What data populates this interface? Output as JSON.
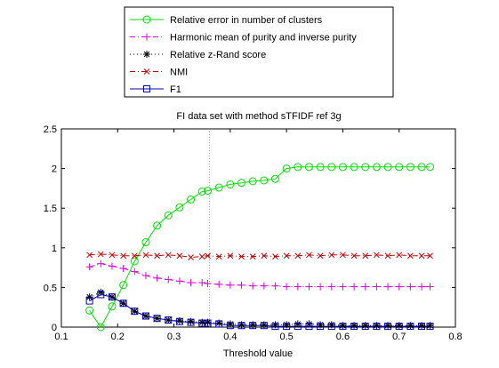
{
  "chart_data": {
    "type": "line",
    "title": "FI data set with method sTFIDF ref 3g",
    "xlabel": "Threshold value",
    "ylabel": "",
    "xlim": [
      0.1,
      0.8
    ],
    "ylim": [
      0,
      2.5
    ],
    "xticks": [
      "0.1",
      "0.2",
      "0.3",
      "0.4",
      "0.5",
      "0.6",
      "0.7",
      "0.8"
    ],
    "yticks": [
      "0",
      "0.5",
      "1",
      "1.5",
      "2",
      "2.5"
    ],
    "grid": false,
    "legend_position": "top-center-outside",
    "vertical_reference_line": {
      "x": 0.363,
      "color": "#a0a0a0"
    },
    "x": [
      0.15,
      0.17,
      0.19,
      0.21,
      0.23,
      0.25,
      0.27,
      0.29,
      0.31,
      0.33,
      0.35,
      0.36,
      0.38,
      0.4,
      0.42,
      0.44,
      0.46,
      0.48,
      0.5,
      0.52,
      0.54,
      0.56,
      0.58,
      0.6,
      0.62,
      0.64,
      0.66,
      0.68,
      0.7,
      0.72,
      0.74,
      0.755
    ],
    "series": [
      {
        "name": "Relative error in number of clusters",
        "color": "#00e000",
        "marker": "circle",
        "line_style": "solid",
        "values": [
          0.21,
          0.0,
          0.26,
          0.53,
          0.83,
          1.07,
          1.28,
          1.41,
          1.51,
          1.61,
          1.71,
          1.72,
          1.76,
          1.8,
          1.82,
          1.84,
          1.85,
          1.87,
          2.0,
          2.02,
          2.02,
          2.02,
          2.02,
          2.02,
          2.02,
          2.02,
          2.02,
          2.02,
          2.02,
          2.02,
          2.02,
          2.02
        ]
      },
      {
        "name": "Harmonic mean of purity and inverse purity",
        "color": "#e000e0",
        "marker": "plus",
        "line_style": "dashdot",
        "values": [
          0.76,
          0.8,
          0.77,
          0.74,
          0.7,
          0.65,
          0.62,
          0.6,
          0.58,
          0.56,
          0.56,
          0.55,
          0.54,
          0.53,
          0.53,
          0.52,
          0.52,
          0.52,
          0.51,
          0.51,
          0.51,
          0.51,
          0.51,
          0.51,
          0.51,
          0.51,
          0.51,
          0.51,
          0.51,
          0.51,
          0.51,
          0.51
        ]
      },
      {
        "name": "Relative z-Rand score",
        "color": "#000000",
        "marker": "star",
        "line_style": "dotted",
        "values": [
          0.38,
          0.44,
          0.38,
          0.3,
          0.2,
          0.14,
          0.11,
          0.09,
          0.08,
          0.07,
          0.06,
          0.06,
          0.05,
          0.04,
          0.03,
          0.03,
          0.03,
          0.03,
          0.03,
          0.04,
          0.04,
          0.03,
          0.03,
          0.02,
          0.02,
          0.02,
          0.02,
          0.02,
          0.02,
          0.02,
          0.02,
          0.02
        ]
      },
      {
        "name": "NMI",
        "color": "#c00000",
        "marker": "x",
        "line_style": "dashdot",
        "values": [
          0.91,
          0.92,
          0.91,
          0.9,
          0.9,
          0.91,
          0.9,
          0.91,
          0.9,
          0.88,
          0.89,
          0.9,
          0.89,
          0.9,
          0.89,
          0.89,
          0.9,
          0.89,
          0.9,
          0.9,
          0.91,
          0.9,
          0.91,
          0.91,
          0.9,
          0.9,
          0.91,
          0.9,
          0.91,
          0.9,
          0.9,
          0.9
        ]
      },
      {
        "name": "F1",
        "color": "#0000c0",
        "marker": "square",
        "line_style": "solid",
        "values": [
          0.33,
          0.41,
          0.38,
          0.3,
          0.2,
          0.14,
          0.11,
          0.09,
          0.07,
          0.06,
          0.05,
          0.05,
          0.04,
          0.02,
          0.02,
          0.02,
          0.02,
          0.01,
          0.01,
          0.01,
          0.01,
          0.01,
          0.01,
          0.01,
          0.01,
          0.01,
          0.01,
          0.01,
          0.01,
          0.01,
          0.01,
          0.01
        ]
      }
    ]
  }
}
